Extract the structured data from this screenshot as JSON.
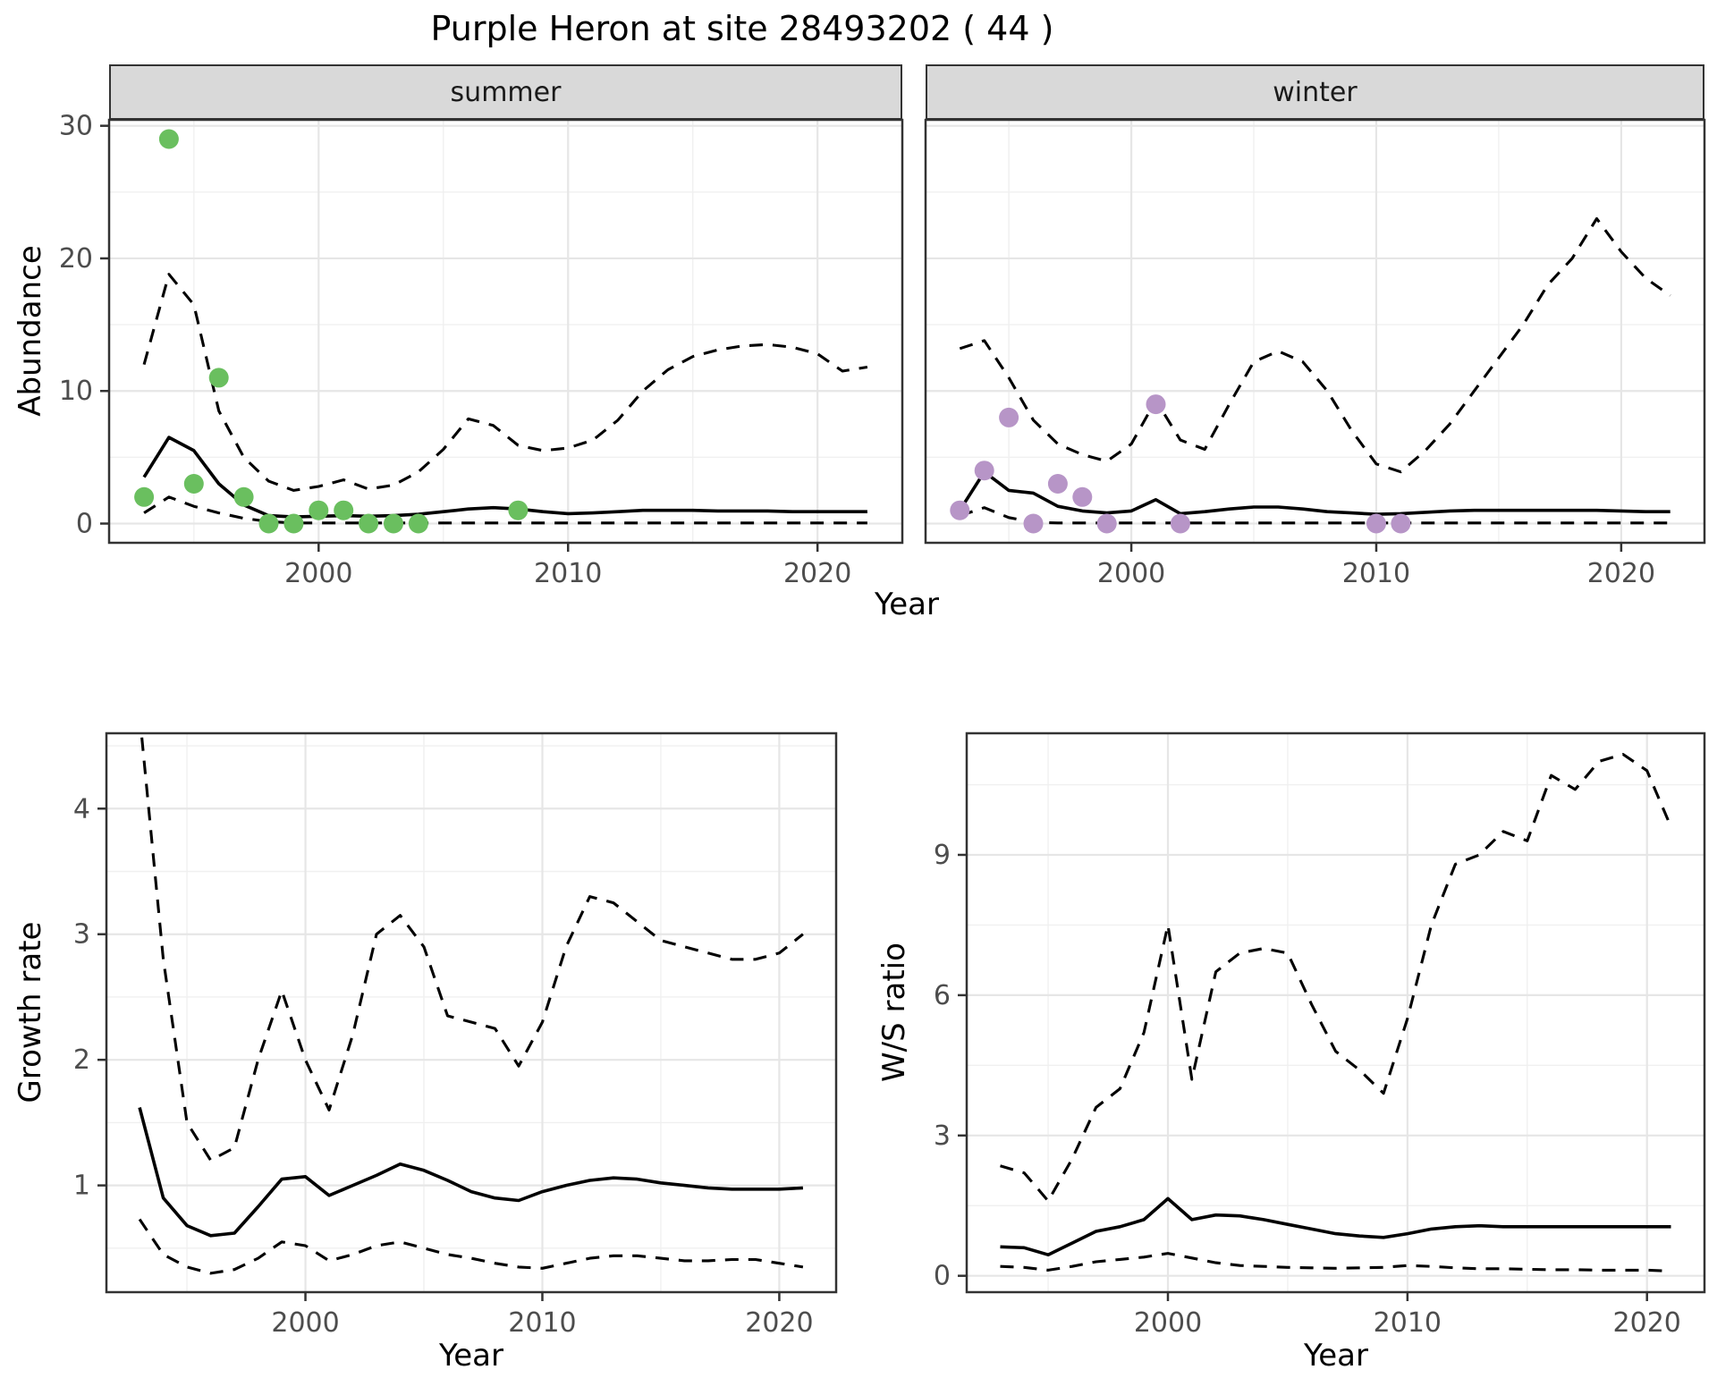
{
  "title": "Purple Heron at site 28493202 ( 44 )",
  "colors": {
    "line": "#000000",
    "grid_major": "#e6e6e6",
    "grid_minor": "#f0f0f0",
    "panel_border": "#333333",
    "tick_label": "#4d4d4d",
    "strip_bg": "#d9d9d9",
    "summer_point": "#6abf5f",
    "winter_point": "#b795c7"
  },
  "chart_data": [
    {
      "id": "abundance-summer",
      "type": "line",
      "facet_label": "summer",
      "xlabel": "Year",
      "ylabel": "Abundance",
      "xlim": [
        1991.6,
        2023.4
      ],
      "ylim": [
        -1.45,
        30.45
      ],
      "xticks": [
        2000,
        2010,
        2020
      ],
      "xticks_minor": [
        1995,
        2005,
        2015
      ],
      "yticks": [
        0,
        10,
        20,
        30
      ],
      "yticks_minor": [
        5,
        15,
        25
      ],
      "show_y_tick_labels": true,
      "x": [
        1993,
        1994,
        1995,
        1996,
        1997,
        1998,
        1999,
        2000,
        2001,
        2002,
        2003,
        2004,
        2005,
        2006,
        2007,
        2008,
        2009,
        2010,
        2011,
        2012,
        2013,
        2014,
        2015,
        2016,
        2017,
        2018,
        2019,
        2020,
        2021,
        2022
      ],
      "series": [
        {
          "name": "mean-line",
          "style": "solid",
          "values": [
            3.5,
            6.5,
            5.5,
            3.0,
            1.4,
            0.6,
            0.5,
            0.55,
            0.6,
            0.55,
            0.6,
            0.7,
            0.9,
            1.1,
            1.2,
            1.1,
            0.9,
            0.75,
            0.8,
            0.9,
            1.0,
            1.0,
            1.0,
            0.95,
            0.95,
            0.95,
            0.9,
            0.9,
            0.9,
            0.9
          ]
        },
        {
          "name": "upper-ci-dashed",
          "style": "dashed",
          "values": [
            12.0,
            18.8,
            16.5,
            8.5,
            5.0,
            3.2,
            2.5,
            2.8,
            3.3,
            2.6,
            2.9,
            3.9,
            5.6,
            7.9,
            7.4,
            5.9,
            5.5,
            5.7,
            6.3,
            7.8,
            10.0,
            11.6,
            12.6,
            13.1,
            13.4,
            13.5,
            13.3,
            12.8,
            11.5,
            11.8
          ]
        },
        {
          "name": "lower-ci-dashed",
          "style": "dashed",
          "values": [
            0.8,
            2.0,
            1.3,
            0.8,
            0.4,
            0.15,
            0.05,
            0.05,
            0.05,
            0.05,
            0.05,
            0.05,
            0.05,
            0.05,
            0.05,
            0.05,
            0.05,
            0.05,
            0.05,
            0.05,
            0.05,
            0.05,
            0.05,
            0.05,
            0.05,
            0.05,
            0.05,
            0.05,
            0.05,
            0.05
          ]
        }
      ],
      "observed_points": {
        "color": "#6abf5f",
        "x": [
          1993,
          1994,
          1995,
          1996,
          1997,
          1998,
          1999,
          2000,
          2001,
          2002,
          2003,
          2004,
          2008
        ],
        "y": [
          2,
          29,
          3,
          11,
          2,
          0,
          0,
          1,
          1,
          0,
          0,
          0,
          1
        ]
      }
    },
    {
      "id": "abundance-winter",
      "type": "line",
      "facet_label": "winter",
      "xlabel": "Year",
      "ylabel": "Abundance",
      "xlim": [
        1991.6,
        2023.4
      ],
      "ylim": [
        -1.45,
        30.45
      ],
      "xticks": [
        2000,
        2010,
        2020
      ],
      "xticks_minor": [
        1995,
        2005,
        2015
      ],
      "yticks": [
        0,
        10,
        20,
        30
      ],
      "yticks_minor": [
        5,
        15,
        25
      ],
      "show_y_tick_labels": false,
      "x": [
        1993,
        1994,
        1995,
        1996,
        1997,
        1998,
        1999,
        2000,
        2001,
        2002,
        2003,
        2004,
        2005,
        2006,
        2007,
        2008,
        2009,
        2010,
        2011,
        2012,
        2013,
        2014,
        2015,
        2016,
        2017,
        2018,
        2019,
        2020,
        2021,
        2022
      ],
      "series": [
        {
          "name": "mean-line",
          "style": "solid",
          "values": [
            1.0,
            3.9,
            2.5,
            2.3,
            1.3,
            0.95,
            0.8,
            0.95,
            1.8,
            0.75,
            0.9,
            1.1,
            1.25,
            1.25,
            1.1,
            0.9,
            0.8,
            0.7,
            0.75,
            0.85,
            0.95,
            1.0,
            1.0,
            1.0,
            1.0,
            1.0,
            1.0,
            0.95,
            0.9,
            0.9
          ]
        },
        {
          "name": "upper-ci-dashed",
          "style": "dashed",
          "values": [
            13.2,
            13.8,
            11.0,
            7.8,
            6.0,
            5.2,
            4.7,
            6.0,
            9.3,
            6.3,
            5.6,
            9.0,
            12.2,
            13.0,
            12.2,
            10.0,
            7.0,
            4.5,
            3.9,
            5.5,
            7.5,
            10.0,
            12.5,
            15.0,
            18.0,
            20.0,
            23.0,
            20.5,
            18.5,
            17.2
          ]
        },
        {
          "name": "lower-ci-dashed",
          "style": "dashed",
          "values": [
            0.6,
            1.2,
            0.45,
            0.1,
            0.05,
            0.05,
            0.05,
            0.05,
            0.05,
            0.05,
            0.05,
            0.05,
            0.05,
            0.05,
            0.05,
            0.05,
            0.05,
            0.05,
            0.05,
            0.05,
            0.05,
            0.05,
            0.05,
            0.05,
            0.05,
            0.05,
            0.05,
            0.05,
            0.05,
            0.05
          ]
        }
      ],
      "observed_points": {
        "color": "#b795c7",
        "x": [
          1993,
          1994,
          1995,
          1996,
          1997,
          1998,
          1999,
          2001,
          2002,
          2010,
          2011
        ],
        "y": [
          1,
          4,
          8,
          0,
          3,
          2,
          0,
          9,
          0,
          0,
          0
        ]
      }
    },
    {
      "id": "growth-rate",
      "type": "line",
      "facet_label": "",
      "xlabel": "Year",
      "ylabel": "Growth rate",
      "xlim": [
        1991.6,
        2022.4
      ],
      "ylim": [
        0.15,
        4.6
      ],
      "xticks": [
        2000,
        2010,
        2020
      ],
      "xticks_minor": [
        1995,
        2005,
        2015
      ],
      "yticks": [
        1,
        2,
        3,
        4
      ],
      "yticks_minor": [
        0.5,
        1.5,
        2.5,
        3.5,
        4.5
      ],
      "show_y_tick_labels": true,
      "x": [
        1993,
        1994,
        1995,
        1996,
        1997,
        1998,
        1999,
        2000,
        2001,
        2002,
        2003,
        2004,
        2005,
        2006,
        2007,
        2008,
        2009,
        2010,
        2011,
        2012,
        2013,
        2014,
        2015,
        2016,
        2017,
        2018,
        2019,
        2020,
        2021
      ],
      "series": [
        {
          "name": "mean-line",
          "style": "solid",
          "values": [
            1.62,
            0.9,
            0.68,
            0.6,
            0.62,
            0.83,
            1.05,
            1.07,
            0.92,
            1.0,
            1.08,
            1.17,
            1.12,
            1.04,
            0.95,
            0.9,
            0.88,
            0.95,
            1.0,
            1.04,
            1.06,
            1.05,
            1.02,
            1.0,
            0.98,
            0.97,
            0.97,
            0.97,
            0.98
          ]
        },
        {
          "name": "upper-ci-dashed",
          "style": "dashed",
          "values": [
            4.75,
            2.8,
            1.5,
            1.2,
            1.3,
            2.0,
            2.55,
            2.0,
            1.6,
            2.2,
            3.0,
            3.15,
            2.9,
            2.35,
            2.3,
            2.25,
            1.95,
            2.3,
            2.9,
            3.3,
            3.25,
            3.1,
            2.95,
            2.9,
            2.85,
            2.8,
            2.8,
            2.85,
            3.0
          ]
        },
        {
          "name": "lower-ci-dashed",
          "style": "dashed",
          "values": [
            0.73,
            0.45,
            0.35,
            0.3,
            0.33,
            0.42,
            0.55,
            0.52,
            0.4,
            0.45,
            0.52,
            0.55,
            0.5,
            0.45,
            0.42,
            0.38,
            0.35,
            0.34,
            0.38,
            0.42,
            0.44,
            0.44,
            0.42,
            0.4,
            0.4,
            0.41,
            0.41,
            0.38,
            0.35
          ]
        }
      ],
      "observed_points": {
        "color": "#6abf5f",
        "x": [],
        "y": []
      }
    },
    {
      "id": "ws-ratio",
      "type": "line",
      "facet_label": "",
      "xlabel": "Year",
      "ylabel": "W/S ratio",
      "xlim": [
        1991.6,
        2022.4
      ],
      "ylim": [
        -0.35,
        11.6
      ],
      "xticks": [
        2000,
        2010,
        2020
      ],
      "xticks_minor": [
        1995,
        2005,
        2015
      ],
      "yticks": [
        0,
        3,
        6,
        9
      ],
      "yticks_minor": [
        1.5,
        4.5,
        7.5,
        10.5
      ],
      "show_y_tick_labels": true,
      "x": [
        1993,
        1994,
        1995,
        1996,
        1997,
        1998,
        1999,
        2000,
        2001,
        2002,
        2003,
        2004,
        2005,
        2006,
        2007,
        2008,
        2009,
        2010,
        2011,
        2012,
        2013,
        2014,
        2015,
        2016,
        2017,
        2018,
        2019,
        2020,
        2021
      ],
      "series": [
        {
          "name": "mean-line",
          "style": "solid",
          "values": [
            0.62,
            0.6,
            0.45,
            0.7,
            0.95,
            1.05,
            1.2,
            1.65,
            1.2,
            1.3,
            1.28,
            1.2,
            1.1,
            1.0,
            0.9,
            0.85,
            0.82,
            0.9,
            1.0,
            1.05,
            1.07,
            1.05,
            1.05,
            1.05,
            1.05,
            1.05,
            1.05,
            1.05,
            1.05
          ]
        },
        {
          "name": "upper-ci-dashed",
          "style": "dashed",
          "values": [
            2.35,
            2.2,
            1.6,
            2.5,
            3.6,
            4.0,
            5.2,
            7.5,
            4.2,
            6.5,
            6.9,
            7.0,
            6.9,
            5.8,
            4.8,
            4.4,
            3.9,
            5.5,
            7.5,
            8.8,
            9.0,
            9.5,
            9.3,
            10.7,
            10.4,
            11.0,
            11.15,
            10.8,
            9.6
          ]
        },
        {
          "name": "lower-ci-dashed",
          "style": "dashed",
          "values": [
            0.2,
            0.18,
            0.12,
            0.2,
            0.3,
            0.35,
            0.4,
            0.48,
            0.38,
            0.28,
            0.22,
            0.2,
            0.18,
            0.17,
            0.16,
            0.17,
            0.18,
            0.22,
            0.2,
            0.17,
            0.15,
            0.15,
            0.14,
            0.13,
            0.13,
            0.12,
            0.12,
            0.12,
            0.1
          ]
        }
      ],
      "observed_points": {
        "color": "#b795c7",
        "x": [],
        "y": []
      }
    }
  ]
}
